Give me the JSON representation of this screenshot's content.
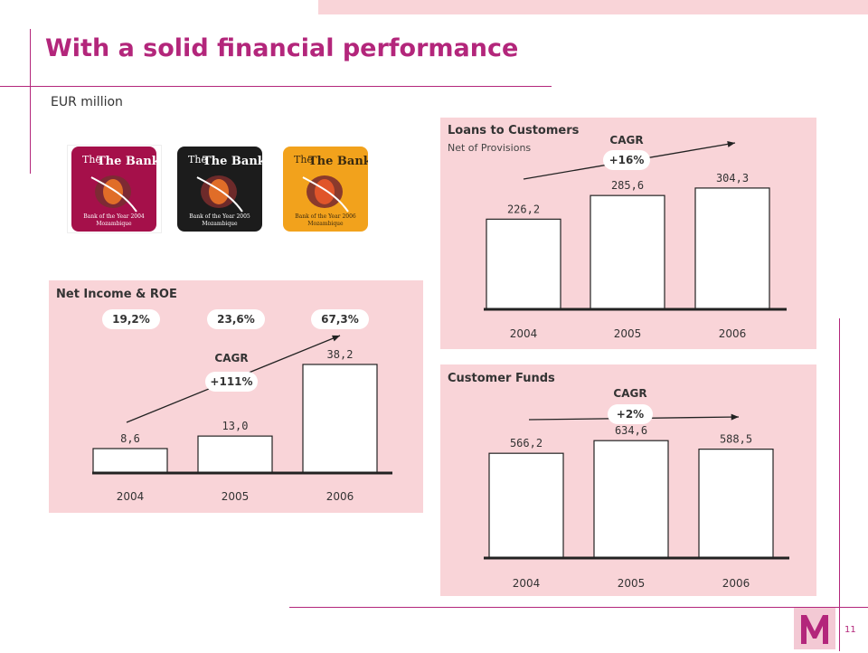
{
  "header": {
    "title": "With a solid financial performance",
    "unit": "EUR million"
  },
  "awards": [
    {
      "brand": "The Banker",
      "caption1": "Bank of the Year 2004",
      "caption2": "Mozambique",
      "color": "#a5104a"
    },
    {
      "brand": "The Banker",
      "caption1": "Bank of the Year 2005",
      "caption2": "Mozambique",
      "color": "#1c1c1c"
    },
    {
      "brand": "The Banker",
      "caption1": "Bank of the Year 2006",
      "caption2": "Mozambique",
      "color": "#f2a21c"
    }
  ],
  "page_number": "11",
  "colors": {
    "brand": "#b3267b",
    "panel": "#f9d4d8"
  },
  "chart_data": [
    {
      "type": "bar",
      "title": "Net Income & ROE",
      "categories": [
        "2004",
        "2005",
        "2006"
      ],
      "values": [
        8.6,
        13.0,
        38.2
      ],
      "value_labels": [
        "8,6",
        "13,0",
        "38,2"
      ],
      "roe_labels": [
        "19,2%",
        "23,6%",
        "67,3%"
      ],
      "cagr_label": "CAGR",
      "cagr_value": "+111%",
      "ylim": [
        0,
        42
      ]
    },
    {
      "type": "bar",
      "title": "Loans to Customers",
      "subtitle": "Net of Provisions",
      "categories": [
        "2004",
        "2005",
        "2006"
      ],
      "values": [
        226.2,
        285.6,
        304.3
      ],
      "value_labels": [
        "226,2",
        "285,6",
        "304,3"
      ],
      "cagr_label": "CAGR",
      "cagr_value": "+16%",
      "ylim": [
        0,
        320
      ]
    },
    {
      "type": "bar",
      "title": "Customer Funds",
      "categories": [
        "2004",
        "2005",
        "2006"
      ],
      "values": [
        566.2,
        634.6,
        588.5
      ],
      "value_labels": [
        "566,2",
        "634,6",
        "588,5"
      ],
      "cagr_label": "CAGR",
      "cagr_value": "+2%",
      "ylim": [
        0,
        660
      ]
    }
  ]
}
